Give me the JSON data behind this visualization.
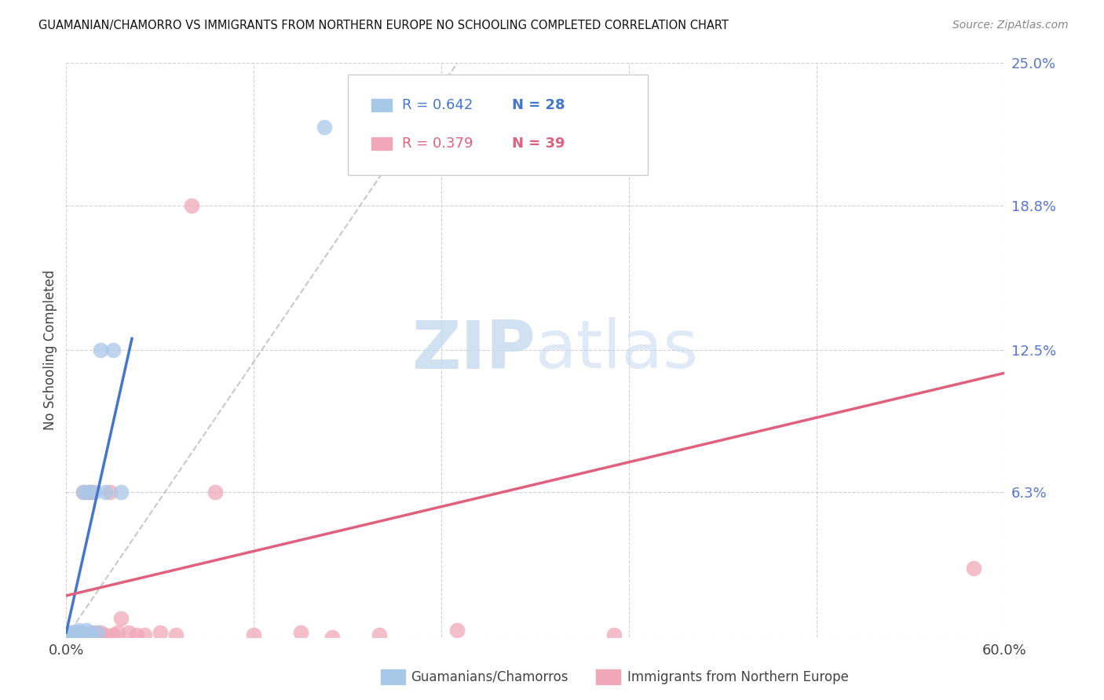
{
  "title": "GUAMANIAN/CHAMORRO VS IMMIGRANTS FROM NORTHERN EUROPE NO SCHOOLING COMPLETED CORRELATION CHART",
  "source": "Source: ZipAtlas.com",
  "ylabel": "No Schooling Completed",
  "legend_label1": "Guamanians/Chamorros",
  "legend_label2": "Immigrants from Northern Europe",
  "R1": 0.642,
  "N1": 28,
  "R2": 0.379,
  "N2": 39,
  "color1": "#a8c8e8",
  "color2": "#f0a8b8",
  "line_color1": "#4477cc",
  "line_color2": "#e06080",
  "color1_dark": "#4477cc",
  "color2_dark": "#e06080",
  "xlim": [
    0.0,
    0.6
  ],
  "ylim": [
    0.0,
    0.25
  ],
  "background_color": "#ffffff",
  "scatter1_x": [
    0.0,
    0.001,
    0.001,
    0.002,
    0.002,
    0.003,
    0.004,
    0.004,
    0.005,
    0.005,
    0.006,
    0.007,
    0.008,
    0.009,
    0.01,
    0.011,
    0.012,
    0.013,
    0.014,
    0.015,
    0.016,
    0.018,
    0.02,
    0.022,
    0.025,
    0.03,
    0.035,
    0.165
  ],
  "scatter1_y": [
    0.0,
    0.0,
    0.001,
    0.0,
    0.001,
    0.001,
    0.0,
    0.002,
    0.001,
    0.002,
    0.001,
    0.002,
    0.003,
    0.001,
    0.002,
    0.063,
    0.001,
    0.003,
    0.063,
    0.002,
    0.001,
    0.063,
    0.002,
    0.125,
    0.063,
    0.125,
    0.063,
    0.222
  ],
  "scatter2_x": [
    0.0,
    0.001,
    0.002,
    0.003,
    0.003,
    0.004,
    0.005,
    0.006,
    0.007,
    0.008,
    0.009,
    0.01,
    0.011,
    0.012,
    0.013,
    0.015,
    0.016,
    0.018,
    0.02,
    0.022,
    0.025,
    0.028,
    0.03,
    0.033,
    0.035,
    0.04,
    0.045,
    0.05,
    0.06,
    0.07,
    0.08,
    0.095,
    0.12,
    0.15,
    0.17,
    0.2,
    0.25,
    0.35,
    0.58
  ],
  "scatter2_y": [
    0.0,
    0.001,
    0.0,
    0.001,
    0.002,
    0.001,
    0.0,
    0.001,
    0.002,
    0.001,
    0.002,
    0.001,
    0.063,
    0.001,
    0.001,
    0.063,
    0.063,
    0.002,
    0.001,
    0.002,
    0.001,
    0.063,
    0.001,
    0.002,
    0.008,
    0.002,
    0.001,
    0.001,
    0.002,
    0.001,
    0.188,
    0.063,
    0.001,
    0.002,
    0.0,
    0.001,
    0.003,
    0.001,
    0.03
  ],
  "blue_line_x": [
    0.0,
    0.042
  ],
  "blue_line_y": [
    0.002,
    0.13
  ],
  "pink_line_x": [
    0.0,
    0.6
  ],
  "pink_line_y": [
    0.018,
    0.115
  ],
  "diag_line_x": [
    0.0,
    0.25
  ],
  "diag_line_y": [
    0.0,
    0.25
  ],
  "ytick_positions": [
    0.0,
    0.063,
    0.125,
    0.188,
    0.25
  ],
  "ytick_labels": [
    "",
    "6.3%",
    "12.5%",
    "18.8%",
    "25.0%"
  ],
  "xtick_positions": [
    0.0,
    0.12,
    0.24,
    0.36,
    0.48,
    0.6
  ],
  "xtick_labels": [
    "0.0%",
    "",
    "",
    "",
    "",
    "60.0%"
  ]
}
